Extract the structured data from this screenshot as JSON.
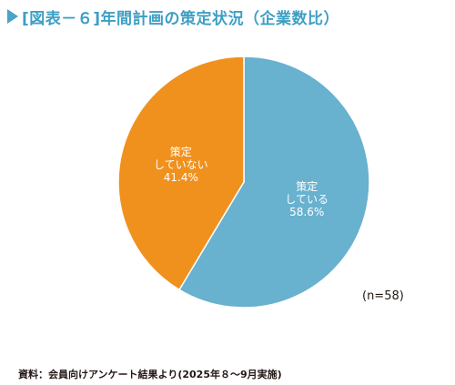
{
  "title": "[図表－６]年間計画の策定状況（企業数比）",
  "note_n": "(n=58)",
  "source": "資料：会員向けアンケート結果より(2025年８～9月実施)",
  "colors": {
    "title": "#3d9fc4",
    "marker": "#4aa3c8",
    "slice_blue": "#68b1cf",
    "slice_orange": "#f0911e"
  },
  "chart_data": {
    "type": "pie",
    "start_angle": "12 o'clock",
    "direction": "clockwise",
    "slices": [
      {
        "label_lines": [
          "策定",
          "している"
        ],
        "value": 58.6,
        "value_label": "58.6%",
        "color": "#68b1cf"
      },
      {
        "label_lines": [
          "策定",
          "していない"
        ],
        "value": 41.4,
        "value_label": "41.4%",
        "color": "#f0911e"
      }
    ]
  }
}
